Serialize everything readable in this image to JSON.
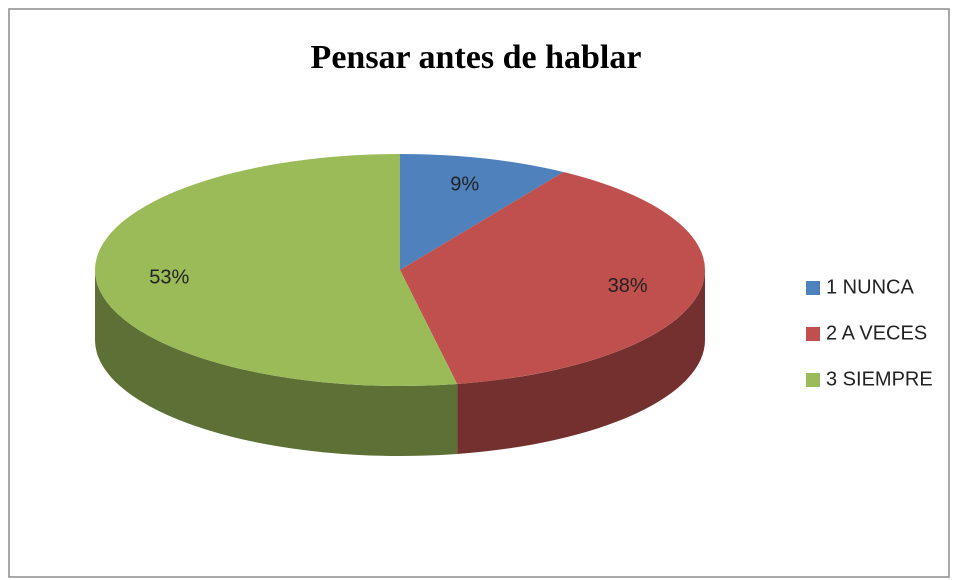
{
  "chart_data": {
    "type": "pie",
    "title": "Pensar antes de hablar",
    "categories": [
      "1 NUNCA",
      "2 A VECES",
      "3 SIEMPRE"
    ],
    "values": [
      9,
      38,
      53
    ],
    "value_labels": [
      "9%",
      "38%",
      "53%"
    ],
    "colors": [
      "#4f81bd",
      "#c0504d",
      "#9bbb59"
    ],
    "legend": "right"
  }
}
